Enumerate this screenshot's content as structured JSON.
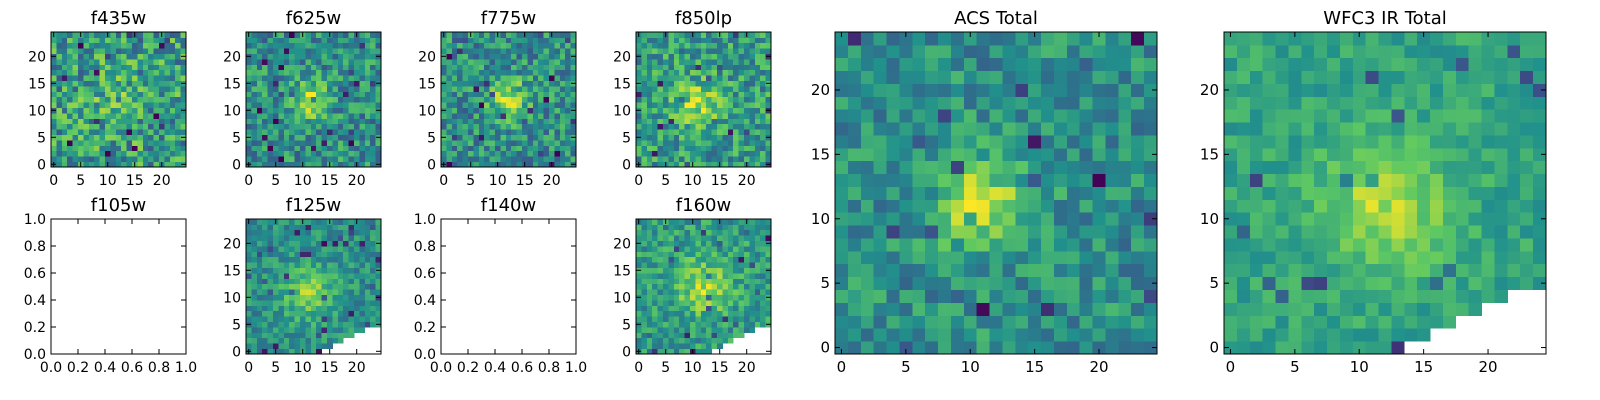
{
  "figure": {
    "background": "#ffffff",
    "colormap": "viridis",
    "colormap_stops": [
      "#440154",
      "#3b528b",
      "#21918c",
      "#5ec962",
      "#fde725"
    ]
  },
  "chart_data": [
    {
      "id": "f435w",
      "type": "heatmap",
      "title": "f435w",
      "grid_size": 25,
      "xlim": [
        -0.5,
        24.5
      ],
      "ylim": [
        -0.5,
        24.5
      ],
      "xticks": [
        "0",
        "5",
        "10",
        "15",
        "20"
      ],
      "yticks": [
        "0",
        "5",
        "10",
        "15",
        "20"
      ],
      "has_data": true,
      "seed": 11,
      "blob": {
        "x": 12,
        "y": 12,
        "sigma": 4,
        "amp": 0.1
      },
      "noise": 0.55,
      "base": 0.55,
      "mask": "none"
    },
    {
      "id": "f625w",
      "type": "heatmap",
      "title": "f625w",
      "grid_size": 25,
      "xlim": [
        -0.5,
        24.5
      ],
      "ylim": [
        -0.5,
        24.5
      ],
      "xticks": [
        "0",
        "5",
        "10",
        "15",
        "20"
      ],
      "yticks": [
        "0",
        "5",
        "10",
        "15",
        "20"
      ],
      "has_data": true,
      "seed": 23,
      "blob": {
        "x": 11,
        "y": 12,
        "sigma": 2.5,
        "amp": 0.35
      },
      "noise": 0.45,
      "base": 0.5,
      "mask": "none"
    },
    {
      "id": "f775w",
      "type": "heatmap",
      "title": "f775w",
      "grid_size": 25,
      "xlim": [
        -0.5,
        24.5
      ],
      "ylim": [
        -0.5,
        24.5
      ],
      "xticks": [
        "0",
        "5",
        "10",
        "15",
        "20"
      ],
      "yticks": [
        "0",
        "5",
        "10",
        "15",
        "20"
      ],
      "has_data": true,
      "seed": 37,
      "blob": {
        "x": 12,
        "y": 12,
        "sigma": 2.5,
        "amp": 0.4
      },
      "noise": 0.45,
      "base": 0.5,
      "mask": "none"
    },
    {
      "id": "f850lp",
      "type": "heatmap",
      "title": "f850lp",
      "grid_size": 25,
      "xlim": [
        -0.5,
        24.5
      ],
      "ylim": [
        -0.5,
        24.5
      ],
      "xticks": [
        "0",
        "5",
        "10",
        "15",
        "20"
      ],
      "yticks": [
        "0",
        "5",
        "10",
        "15",
        "20"
      ],
      "has_data": true,
      "seed": 41,
      "blob": {
        "x": 11,
        "y": 11,
        "sigma": 3,
        "amp": 0.3
      },
      "noise": 0.45,
      "base": 0.55,
      "mask": "none"
    },
    {
      "id": "acs-total",
      "type": "heatmap",
      "title": "ACS Total",
      "grid_size": 25,
      "xlim": [
        -0.5,
        24.5
      ],
      "ylim": [
        -0.5,
        24.5
      ],
      "xticks": [
        "0",
        "5",
        "10",
        "15",
        "20"
      ],
      "yticks": [
        "0",
        "5",
        "10",
        "15",
        "20"
      ],
      "has_data": true,
      "seed": 53,
      "blob": {
        "x": 11,
        "y": 11,
        "sigma": 2.5,
        "amp": 0.4
      },
      "noise": 0.35,
      "base": 0.5,
      "mask": "none"
    },
    {
      "id": "f105w",
      "type": "empty",
      "title": "f105w",
      "xlim": [
        0.0,
        1.0
      ],
      "ylim": [
        0.0,
        1.0
      ],
      "xticks": [
        "0.0",
        "0.2",
        "0.4",
        "0.6",
        "0.8",
        "1.0"
      ],
      "yticks": [
        "0.0",
        "0.2",
        "0.4",
        "0.6",
        "0.8",
        "1.0"
      ],
      "has_data": false
    },
    {
      "id": "f125w",
      "type": "heatmap",
      "title": "f125w",
      "grid_size": 25,
      "xlim": [
        -0.5,
        24.5
      ],
      "ylim": [
        -0.5,
        24.5
      ],
      "xticks": [
        "0",
        "5",
        "10",
        "15",
        "20"
      ],
      "yticks": [
        "0",
        "5",
        "10",
        "15",
        "20"
      ],
      "has_data": true,
      "seed": 67,
      "blob": {
        "x": 11,
        "y": 11,
        "sigma": 3.5,
        "amp": 0.3
      },
      "noise": 0.3,
      "base": 0.5,
      "mask": "lower-right"
    },
    {
      "id": "f140w",
      "type": "empty",
      "title": "f140w",
      "xlim": [
        0.0,
        1.0
      ],
      "ylim": [
        0.0,
        1.0
      ],
      "xticks": [
        "0.0",
        "0.2",
        "0.4",
        "0.6",
        "0.8",
        "1.0"
      ],
      "yticks": [
        "0.0",
        "0.2",
        "0.4",
        "0.6",
        "0.8",
        "1.0"
      ],
      "has_data": false
    },
    {
      "id": "f160w",
      "type": "heatmap",
      "title": "f160w",
      "grid_size": 25,
      "xlim": [
        -0.5,
        24.5
      ],
      "ylim": [
        -0.5,
        24.5
      ],
      "xticks": [
        "0",
        "5",
        "10",
        "15",
        "20"
      ],
      "yticks": [
        "0",
        "5",
        "10",
        "15",
        "20"
      ],
      "has_data": true,
      "seed": 79,
      "blob": {
        "x": 12,
        "y": 12,
        "sigma": 3.5,
        "amp": 0.3
      },
      "noise": 0.35,
      "base": 0.55,
      "mask": "lower-right"
    },
    {
      "id": "wfc3-ir-total",
      "type": "heatmap",
      "title": "WFC3 IR Total",
      "grid_size": 25,
      "xlim": [
        -0.5,
        24.5
      ],
      "ylim": [
        -0.5,
        24.5
      ],
      "xticks": [
        "0",
        "5",
        "10",
        "15",
        "20"
      ],
      "yticks": [
        "0",
        "5",
        "10",
        "15",
        "20"
      ],
      "has_data": true,
      "seed": 97,
      "blob": {
        "x": 12,
        "y": 11,
        "sigma": 3.5,
        "amp": 0.3
      },
      "noise": 0.22,
      "base": 0.58,
      "mask": "lower-right"
    }
  ]
}
